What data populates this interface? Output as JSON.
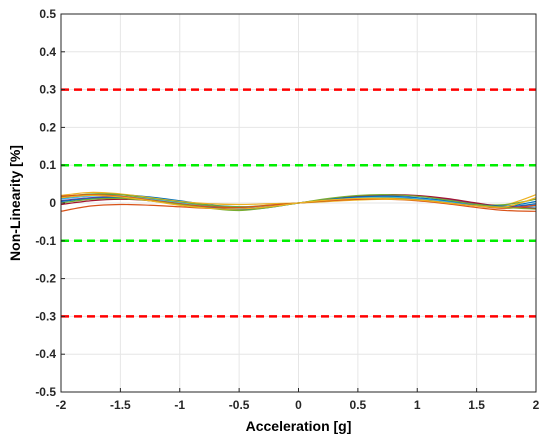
{
  "chart_data": {
    "type": "line",
    "title": "",
    "xlabel": "Acceleration [g]",
    "ylabel": "Non-Linearity [%]",
    "xlim": [
      -2,
      2
    ],
    "ylim": [
      -0.5,
      0.5
    ],
    "x_ticks": [
      -2,
      -1.5,
      -1,
      -0.5,
      0,
      0.5,
      1,
      1.5,
      2
    ],
    "x_tick_labels": [
      "-2",
      "-1.5",
      "-1",
      "-0.5",
      "0",
      "0.5",
      "1",
      "1.5",
      "2"
    ],
    "y_ticks": [
      0.5,
      0.4,
      0.3,
      0.2,
      0.1,
      0,
      -0.1,
      -0.2,
      -0.3,
      -0.4,
      -0.5
    ],
    "y_tick_labels": [
      "0.5",
      "0.4",
      "0.3",
      "0.2",
      "0.1",
      "0",
      "-0.1",
      "-0.2",
      "-0.3",
      "-0.4",
      "-0.5"
    ],
    "grid": true,
    "limit_lines": [
      {
        "y": 0.3,
        "color": "#ff0000",
        "style": "dashed"
      },
      {
        "y": 0.1,
        "color": "#00ee00",
        "style": "dashed"
      },
      {
        "y": -0.1,
        "color": "#00ee00",
        "style": "dashed"
      },
      {
        "y": -0.3,
        "color": "#ff0000",
        "style": "dashed"
      }
    ],
    "x": [
      -2,
      -1.75,
      -1.5,
      -1.25,
      -1,
      -0.75,
      -0.5,
      -0.25,
      0,
      0.25,
      0.5,
      0.75,
      1,
      1.25,
      1.5,
      1.75,
      2
    ],
    "series": [
      {
        "color": "#0072BD",
        "values": [
          0.012,
          0.02,
          0.022,
          0.016,
          0.006,
          -0.005,
          -0.01,
          -0.008,
          0,
          0.008,
          0.013,
          0.014,
          0.01,
          0.002,
          -0.006,
          -0.01,
          -0.002
        ]
      },
      {
        "color": "#D95319",
        "values": [
          -0.022,
          -0.008,
          -0.004,
          -0.006,
          -0.01,
          -0.014,
          -0.014,
          -0.008,
          0,
          0.006,
          0.01,
          0.01,
          0.006,
          -0.002,
          -0.012,
          -0.02,
          -0.022
        ]
      },
      {
        "color": "#EDB120",
        "values": [
          0.02,
          0.028,
          0.024,
          0.014,
          0.004,
          -0.002,
          -0.004,
          -0.002,
          0,
          0.004,
          0.008,
          0.01,
          0.008,
          0.002,
          -0.006,
          -0.004,
          0.022
        ]
      },
      {
        "color": "#7E2F8E",
        "values": [
          0.006,
          0.014,
          0.016,
          0.01,
          0.0,
          -0.008,
          -0.012,
          -0.008,
          0,
          0.008,
          0.016,
          0.02,
          0.018,
          0.01,
          -0.002,
          -0.01,
          -0.006
        ]
      },
      {
        "color": "#77AC30",
        "values": [
          0.016,
          0.024,
          0.022,
          0.012,
          0.002,
          -0.006,
          -0.01,
          -0.006,
          0,
          0.006,
          0.012,
          0.014,
          0.012,
          0.004,
          -0.004,
          -0.004,
          0.01
        ]
      },
      {
        "color": "#4DBEEE",
        "values": [
          0.01,
          0.018,
          0.018,
          0.01,
          0.0,
          -0.01,
          -0.014,
          -0.008,
          0,
          0.008,
          0.014,
          0.016,
          0.012,
          0.004,
          -0.006,
          -0.012,
          -0.01
        ]
      },
      {
        "color": "#A2142F",
        "values": [
          -0.004,
          0.006,
          0.01,
          0.006,
          -0.004,
          -0.012,
          -0.016,
          -0.01,
          0,
          0.01,
          0.018,
          0.022,
          0.02,
          0.012,
          0.0,
          -0.01,
          -0.014
        ]
      },
      {
        "color": "#0072BD",
        "values": [
          0.004,
          0.012,
          0.014,
          0.008,
          -0.002,
          -0.012,
          -0.018,
          -0.012,
          0,
          0.01,
          0.016,
          0.018,
          0.014,
          0.006,
          -0.004,
          -0.008,
          0.004
        ]
      },
      {
        "color": "#D95319",
        "values": [
          0.018,
          0.022,
          0.018,
          0.008,
          -0.002,
          -0.01,
          -0.012,
          -0.006,
          0,
          0.006,
          0.01,
          0.012,
          0.008,
          0.0,
          -0.008,
          -0.014,
          -0.006
        ]
      },
      {
        "color": "#77AC30",
        "values": [
          0.0,
          0.01,
          0.012,
          0.006,
          -0.004,
          -0.014,
          -0.02,
          -0.012,
          0,
          0.012,
          0.02,
          0.022,
          0.018,
          0.008,
          -0.004,
          -0.012,
          -0.016
        ]
      },
      {
        "color": "#EDB120",
        "values": [
          0.014,
          0.02,
          0.016,
          0.006,
          -0.006,
          -0.014,
          -0.016,
          -0.01,
          0,
          0.008,
          0.012,
          0.012,
          0.008,
          0.0,
          -0.008,
          -0.01,
          0.014
        ]
      }
    ]
  }
}
